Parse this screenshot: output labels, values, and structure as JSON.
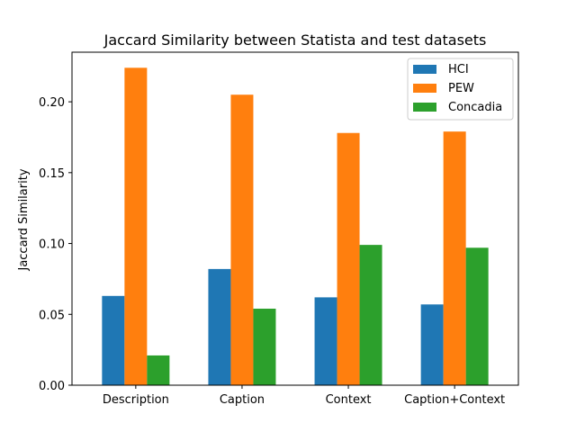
{
  "chart_data": {
    "type": "bar",
    "title": "Jaccard Similarity between Statista and test datasets",
    "xlabel": "",
    "ylabel": "Jaccard Similarity",
    "categories": [
      "Description",
      "Caption",
      "Context",
      "Caption+Context"
    ],
    "series": [
      {
        "name": "HCI",
        "color": "#1f77b4",
        "values": [
          0.063,
          0.082,
          0.062,
          0.057
        ]
      },
      {
        "name": "PEW",
        "color": "#ff7f0e",
        "values": [
          0.224,
          0.205,
          0.178,
          0.179
        ]
      },
      {
        "name": "Concadia",
        "color": "#2ca02c",
        "values": [
          0.021,
          0.054,
          0.099,
          0.097
        ]
      }
    ],
    "ylim": [
      0,
      0.235
    ],
    "yticks": [
      0.0,
      0.05,
      0.1,
      0.15,
      0.2
    ],
    "ytick_labels": [
      "0.00",
      "0.05",
      "0.10",
      "0.15",
      "0.20"
    ],
    "grid": false,
    "legend_position": "top-right"
  }
}
